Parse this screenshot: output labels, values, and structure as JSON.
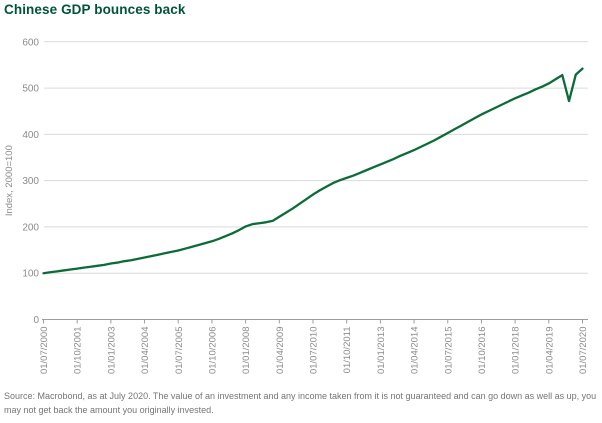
{
  "header": {
    "title": "Chinese GDP bounces back"
  },
  "footer": {
    "source_text": "Source: Macrobond, as at July 2020. The value of an investment and any income taken from it is not guaranteed and can go down as well as up, you may not get back the amount you originally invested."
  },
  "colors": {
    "title": "#005438",
    "line": "#0c6c38",
    "axis_text": "#8c8c8c",
    "gridline": "#dadada",
    "axis_line": "#9e9e9e",
    "source_text": "#757575"
  },
  "chart_data": {
    "type": "line",
    "title": "Chinese GDP bounces back",
    "xlabel": "",
    "ylabel": "Index, 2000=100",
    "ylim": [
      0,
      600
    ],
    "y_ticks": [
      0,
      100,
      200,
      300,
      400,
      500,
      600
    ],
    "x_tick_labels": [
      "01/07/2000",
      "01/10/2001",
      "01/01/2003",
      "01/04/2004",
      "01/07/2005",
      "01/10/2006",
      "01/01/2008",
      "01/04/2009",
      "01/07/2010",
      "01/10/2011",
      "01/01/2013",
      "01/04/2014",
      "01/07/2015",
      "01/10/2016",
      "01/01/2018",
      "01/04/2019",
      "01/07/2020"
    ],
    "grid": "horizontal",
    "legend": "none",
    "series": [
      {
        "name": "Chinese GDP, index 2000=100",
        "frequency": "quarterly",
        "x_start": "01/07/2000",
        "x_end": "01/07/2020",
        "values": [
          100,
          102,
          104,
          106,
          108,
          110,
          112,
          114,
          116,
          118,
          121,
          123,
          126,
          128,
          131,
          134,
          137,
          140,
          143,
          146,
          149,
          153,
          157,
          161,
          165,
          169,
          174,
          180,
          186,
          193,
          201,
          206,
          208,
          210,
          213,
          222,
          231,
          240,
          250,
          260,
          270,
          279,
          287,
          295,
          301,
          306,
          311,
          317,
          323,
          329,
          335,
          341,
          347,
          354,
          360,
          366,
          373,
          380,
          387,
          395,
          403,
          411,
          419,
          427,
          435,
          443,
          450,
          457,
          464,
          471,
          478,
          484,
          490,
          497,
          503,
          510,
          519,
          528,
          472,
          529,
          542
        ]
      }
    ]
  }
}
